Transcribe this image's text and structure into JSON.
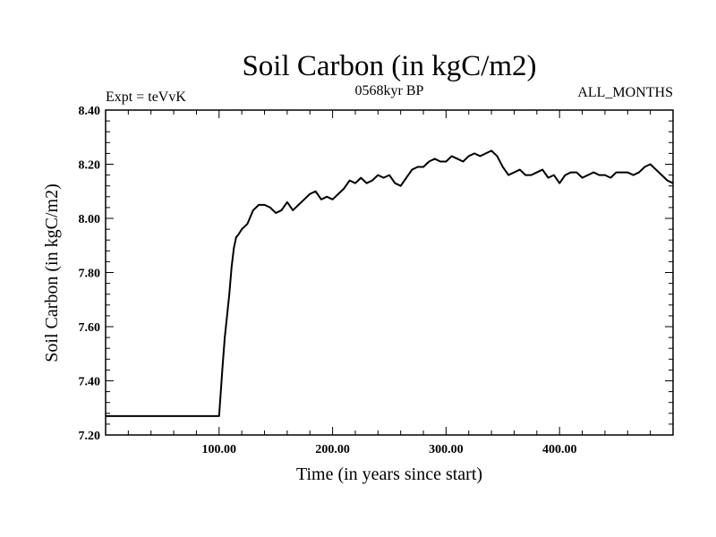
{
  "chart_data": {
    "type": "line",
    "title": "Soil Carbon (in kgC/m2)",
    "subtitle_left": "Expt = teVvK",
    "subtitle_center": "0568kyr BP",
    "subtitle_right": "ALL_MONTHS",
    "xlabel": "Time (in years since start)",
    "ylabel": "Soil Carbon (in kgC/m2)",
    "xlim": [
      0,
      500
    ],
    "ylim": [
      7.2,
      8.4
    ],
    "x_ticks": [
      100,
      200,
      300,
      400
    ],
    "x_tick_labels": [
      "100.00",
      "200.00",
      "300.00",
      "400.00"
    ],
    "y_ticks": [
      7.2,
      7.4,
      7.6,
      7.8,
      8.0,
      8.2,
      8.4
    ],
    "y_tick_labels": [
      "7.20",
      "7.40",
      "7.60",
      "7.80",
      "8.00",
      "8.20",
      "8.40"
    ],
    "grid": false,
    "series": [
      {
        "color": "#000000",
        "x": [
          0,
          100,
          101,
          103,
          105,
          107,
          109,
          111,
          113,
          115,
          117,
          120,
          125,
          130,
          135,
          140,
          145,
          150,
          155,
          160,
          165,
          170,
          175,
          180,
          185,
          190,
          195,
          200,
          205,
          210,
          215,
          220,
          225,
          230,
          235,
          240,
          245,
          250,
          255,
          260,
          265,
          270,
          275,
          280,
          285,
          290,
          295,
          300,
          305,
          310,
          315,
          320,
          325,
          330,
          335,
          340,
          345,
          350,
          355,
          360,
          365,
          370,
          375,
          380,
          385,
          390,
          395,
          400,
          405,
          410,
          415,
          420,
          425,
          430,
          435,
          440,
          445,
          450,
          455,
          460,
          465,
          470,
          475,
          480,
          485,
          490,
          495,
          500
        ],
        "y": [
          7.27,
          7.27,
          7.33,
          7.45,
          7.56,
          7.64,
          7.72,
          7.82,
          7.89,
          7.93,
          7.94,
          7.96,
          7.98,
          8.03,
          8.05,
          8.05,
          8.04,
          8.02,
          8.03,
          8.06,
          8.03,
          8.05,
          8.07,
          8.09,
          8.1,
          8.07,
          8.08,
          8.07,
          8.09,
          8.11,
          8.14,
          8.13,
          8.15,
          8.13,
          8.14,
          8.16,
          8.15,
          8.16,
          8.13,
          8.12,
          8.15,
          8.18,
          8.19,
          8.19,
          8.21,
          8.22,
          8.21,
          8.21,
          8.23,
          8.22,
          8.21,
          8.23,
          8.24,
          8.23,
          8.24,
          8.25,
          8.23,
          8.19,
          8.16,
          8.17,
          8.18,
          8.16,
          8.16,
          8.17,
          8.18,
          8.15,
          8.16,
          8.13,
          8.16,
          8.17,
          8.17,
          8.15,
          8.16,
          8.17,
          8.16,
          8.16,
          8.15,
          8.17,
          8.17,
          8.17,
          8.16,
          8.17,
          8.19,
          8.2,
          8.18,
          8.16,
          8.14,
          8.13
        ]
      }
    ]
  }
}
